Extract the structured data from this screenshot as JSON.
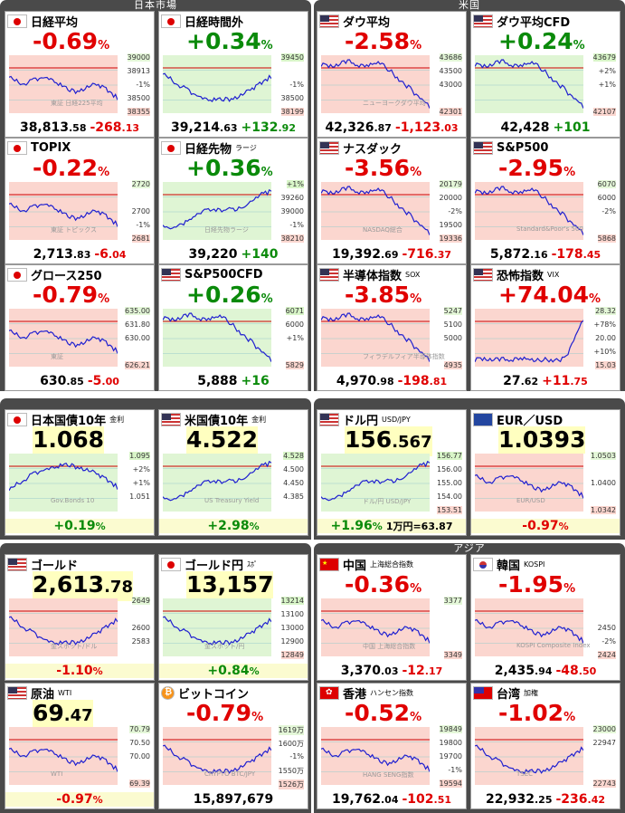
{
  "sections": [
    {
      "id": "japan",
      "title": "日本市場"
    },
    {
      "id": "us",
      "title": "米国"
    },
    {
      "id": "bonds",
      "title": ""
    },
    {
      "id": "fx",
      "title": ""
    },
    {
      "id": "cmdty",
      "title": ""
    },
    {
      "id": "asia",
      "title": "アジア"
    }
  ],
  "cards": [
    {
      "flag": "jp",
      "name": "日経平均",
      "sub": "",
      "big": "-0.69",
      "pct": "%",
      "color": "red",
      "foot_main": "38,813",
      "foot_dec": ".58",
      "foot_chg": "-268",
      "foot_chg_dec": ".13",
      "chg_color": "red",
      "ticks": [
        "39000",
        "38913",
        "-1%",
        "38500",
        "38355"
      ],
      "wm": "東証 日経225平均",
      "trend": "down"
    },
    {
      "flag": "jp",
      "name": "日経時間外",
      "sub": "",
      "big": "+0.34",
      "pct": "%",
      "color": "green",
      "foot_main": "39,214",
      "foot_dec": ".63",
      "foot_chg": "+132",
      "foot_chg_dec": ".92",
      "chg_color": "green",
      "ticks": [
        "39450",
        "",
        "-1%",
        "38500",
        "38199"
      ],
      "wm": "",
      "trend": "vdip"
    },
    {
      "flag": "us",
      "name": "ダウ平均",
      "sub": "",
      "big": "-2.58",
      "pct": "%",
      "color": "red",
      "foot_main": "42,326",
      "foot_dec": ".87",
      "foot_chg": "-1,123",
      "foot_chg_dec": ".03",
      "chg_color": "red",
      "ticks": [
        "43686",
        "43500",
        "43000",
        "",
        "42301"
      ],
      "wm": "ニューヨークダウ平均",
      "trend": "crash"
    },
    {
      "flag": "us",
      "name": "ダウ平均CFD",
      "sub": "",
      "big": "+0.24",
      "pct": "%",
      "color": "green",
      "foot_main": "42,428",
      "foot_dec": "",
      "foot_chg": "+101",
      "foot_chg_dec": "",
      "chg_color": "green",
      "ticks": [
        "43679",
        "+2%",
        "+1%",
        "",
        "42107"
      ],
      "wm": "",
      "trend": "crash"
    },
    {
      "flag": "jp",
      "name": "TOPIX",
      "sub": "",
      "big": "-0.22",
      "pct": "%",
      "color": "red",
      "foot_main": "2,713",
      "foot_dec": ".83",
      "foot_chg": "-6",
      "foot_chg_dec": ".04",
      "chg_color": "red",
      "ticks": [
        "2720",
        "",
        "2700",
        "-1%",
        "2681"
      ],
      "wm": "東証 トピックス",
      "trend": "down"
    },
    {
      "flag": "jp",
      "name": "日経先物",
      "sub": "ラージ",
      "big": "+0.36",
      "pct": "%",
      "color": "green",
      "foot_main": "39,220",
      "foot_dec": "",
      "foot_chg": "+140",
      "foot_chg_dec": "",
      "chg_color": "green",
      "ticks": [
        "+1%",
        "39260",
        "39000",
        "-1%",
        "38210"
      ],
      "wm": "日経先物ラージ",
      "trend": "up"
    },
    {
      "flag": "us",
      "name": "ナスダック",
      "sub": "",
      "big": "-3.56",
      "pct": "%",
      "color": "red",
      "foot_main": "19,392",
      "foot_dec": ".69",
      "foot_chg": "-716",
      "foot_chg_dec": ".37",
      "chg_color": "red",
      "ticks": [
        "20179",
        "20000",
        "-2%",
        "19500",
        "19336"
      ],
      "wm": "NASDAQ総合",
      "trend": "crash"
    },
    {
      "flag": "us",
      "name": "S&P500",
      "sub": "",
      "big": "-2.95",
      "pct": "%",
      "color": "red",
      "foot_main": "5,872",
      "foot_dec": ".16",
      "foot_chg": "-178",
      "foot_chg_dec": ".45",
      "chg_color": "red",
      "ticks": [
        "6070",
        "6000",
        "-2%",
        "",
        "5868"
      ],
      "wm": "Standard&Poor's 500",
      "trend": "crash"
    },
    {
      "flag": "jp",
      "name": "グロース250",
      "sub": "",
      "big": "-0.79",
      "pct": "%",
      "color": "red",
      "foot_main": "630",
      "foot_dec": ".85",
      "foot_chg": "-5",
      "foot_chg_dec": ".00",
      "chg_color": "red",
      "ticks": [
        "635.00",
        "631.80",
        "630.00",
        "",
        "626.21"
      ],
      "wm": "東証",
      "trend": "down"
    },
    {
      "flag": "us",
      "name": "S&P500CFD",
      "sub": "",
      "big": "+0.26",
      "pct": "%",
      "color": "green",
      "foot_main": "5,888",
      "foot_dec": "",
      "foot_chg": "+16",
      "foot_chg_dec": "",
      "chg_color": "green",
      "ticks": [
        "6071",
        "6000",
        "+1%",
        "",
        "5829"
      ],
      "wm": "",
      "trend": "crash"
    },
    {
      "flag": "us",
      "name": "半導体指数",
      "sub": "SOX",
      "big": "-3.85",
      "pct": "%",
      "color": "red",
      "foot_main": "4,970",
      "foot_dec": ".98",
      "foot_chg": "-198",
      "foot_chg_dec": ".81",
      "chg_color": "red",
      "ticks": [
        "5247",
        "5100",
        "5000",
        "",
        "4935"
      ],
      "wm": "フィラデルフィア半導体指数",
      "trend": "crash"
    },
    {
      "flag": "us",
      "name": "恐怖指数",
      "sub": "VIX",
      "big": "+74.04",
      "pct": "%",
      "color": "red",
      "foot_main": "27",
      "foot_dec": ".62",
      "foot_chg": "+11",
      "foot_chg_dec": ".75",
      "chg_color": "red",
      "ticks": [
        "28.32",
        "+78%",
        "20.00",
        "+10%",
        "15.03"
      ],
      "wm": "",
      "trend": "spike"
    },
    {
      "flag": "jp",
      "name": "日本国債10年",
      "sub": "金利",
      "big": "1.068",
      "pct": "",
      "color": "blk",
      "foot_main": "+0.19",
      "foot_dec": "%",
      "foot_chg": "",
      "foot_chg_dec": "",
      "chg_color": "green",
      "ticks": [
        "1.095",
        "+2%",
        "+1%",
        "1.051",
        ""
      ],
      "wm": "Gov.Bonds 10",
      "trend": "bump"
    },
    {
      "flag": "us",
      "name": "米国債10年",
      "sub": "金利",
      "big": "4.522",
      "pct": "",
      "color": "blk",
      "foot_main": "+2.98",
      "foot_dec": "%",
      "foot_chg": "",
      "foot_chg_dec": "",
      "chg_color": "green",
      "ticks": [
        "4.528",
        "4.500",
        "4.450",
        "4.385",
        ""
      ],
      "wm": "US Treasury Yield",
      "trend": "up"
    },
    {
      "flag": "us",
      "name": "ドル円",
      "sub": "USD/JPY",
      "big": "156",
      "big_dec": ".567",
      "pct": "",
      "color": "blk",
      "foot_main": "+1.96",
      "foot_dec": "%",
      "foot_chg": "1万円=63.87",
      "foot_chg_dec": "",
      "chg_color": "green",
      "ticks": [
        "156.77",
        "156.00",
        "155.00",
        "154.00",
        "153.51"
      ],
      "wm": "ドル/円 USD/JPY",
      "trend": "up"
    },
    {
      "flag": "eu",
      "name": "EUR／USD",
      "sub": "",
      "big": "1.0393",
      "pct": "",
      "color": "blk",
      "foot_main": "-0.97",
      "foot_dec": "%",
      "foot_chg": "",
      "foot_chg_dec": "",
      "chg_color": "red",
      "ticks": [
        "1.0503",
        "",
        "1.0400",
        "",
        "1.0342"
      ],
      "wm": "EUR/USD",
      "trend": "down"
    },
    {
      "flag": "us",
      "name": "ゴールド",
      "sub": "",
      "big": "2,613",
      "big_dec": ".78",
      "pct": "",
      "color": "blk",
      "foot_main": "-1.10",
      "foot_dec": "%",
      "foot_chg": "",
      "foot_chg_dec": "",
      "chg_color": "red",
      "ticks": [
        "2649",
        "",
        "2600",
        "2583",
        ""
      ],
      "wm": "金スポット/ドル",
      "trend": "vdip"
    },
    {
      "flag": "jp",
      "name": "ゴールド円",
      "sub": "ｽﾎﾟ",
      "big": "13,157",
      "pct": "",
      "color": "blk",
      "foot_main": "+0.84",
      "foot_dec": "%",
      "foot_chg": "",
      "foot_chg_dec": "",
      "chg_color": "green",
      "ticks": [
        "13214",
        "13100",
        "13000",
        "12900",
        "12849"
      ],
      "wm": "金スポット/円",
      "trend": "vdip"
    },
    {
      "flag": "cn",
      "name": "中国",
      "sub": "上海総合指数",
      "big": "-0.36",
      "pct": "%",
      "color": "red",
      "foot_main": "3,370",
      "foot_dec": ".03",
      "foot_chg": "-12",
      "foot_chg_dec": ".17",
      "chg_color": "red",
      "ticks": [
        "3377",
        "",
        "",
        "",
        "3349"
      ],
      "wm": "中国 上海総合指数",
      "trend": "down"
    },
    {
      "flag": "kr",
      "name": "韓国",
      "sub": "KOSPI",
      "big": "-1.95",
      "pct": "%",
      "color": "red",
      "foot_main": "2,435",
      "foot_dec": ".94",
      "foot_chg": "-48",
      "foot_chg_dec": ".50",
      "chg_color": "red",
      "ticks": [
        "",
        "",
        "2450",
        "-2%",
        "2424"
      ],
      "wm": "KOSPI Composite Index",
      "trend": "down"
    },
    {
      "flag": "us",
      "name": "原油",
      "sub": "WTI",
      "big": "69",
      "big_dec": ".47",
      "pct": "",
      "color": "blk",
      "foot_main": "-0.97",
      "foot_dec": "%",
      "foot_chg": "",
      "foot_chg_dec": "",
      "chg_color": "red",
      "ticks": [
        "70.79",
        "70.50",
        "70.00",
        "",
        "69.39"
      ],
      "wm": "WTI",
      "trend": "down"
    },
    {
      "flag": "btc",
      "name": "ビットコイン",
      "sub": "",
      "big": "-0.79",
      "pct": "%",
      "color": "red",
      "foot_main": "15,897,679",
      "foot_dec": "",
      "foot_chg": "",
      "foot_chg_dec": "",
      "chg_color": "blk",
      "ticks": [
        "1619万",
        "1600万",
        "-1%",
        "1550万",
        "1526万"
      ],
      "wm": "CRYPTO BTC/JPY",
      "trend": "vdip"
    },
    {
      "flag": "hk",
      "name": "香港",
      "sub": "ハンセン指数",
      "big": "-0.52",
      "pct": "%",
      "color": "red",
      "foot_main": "19,762",
      "foot_dec": ".04",
      "foot_chg": "-102",
      "foot_chg_dec": ".51",
      "chg_color": "red",
      "ticks": [
        "19849",
        "19800",
        "19700",
        "-1%",
        "19594"
      ],
      "wm": "HANG SENG指数",
      "trend": "down"
    },
    {
      "flag": "tw",
      "name": "台湾",
      "sub": "加権",
      "big": "-1.02",
      "pct": "%",
      "color": "red",
      "foot_main": "22,932",
      "foot_dec": ".25",
      "foot_chg": "-236",
      "foot_chg_dec": ".42",
      "chg_color": "red",
      "ticks": [
        "23000",
        "22947",
        "",
        "",
        "22743"
      ],
      "wm": "TSEC",
      "trend": "vdip"
    }
  ]
}
